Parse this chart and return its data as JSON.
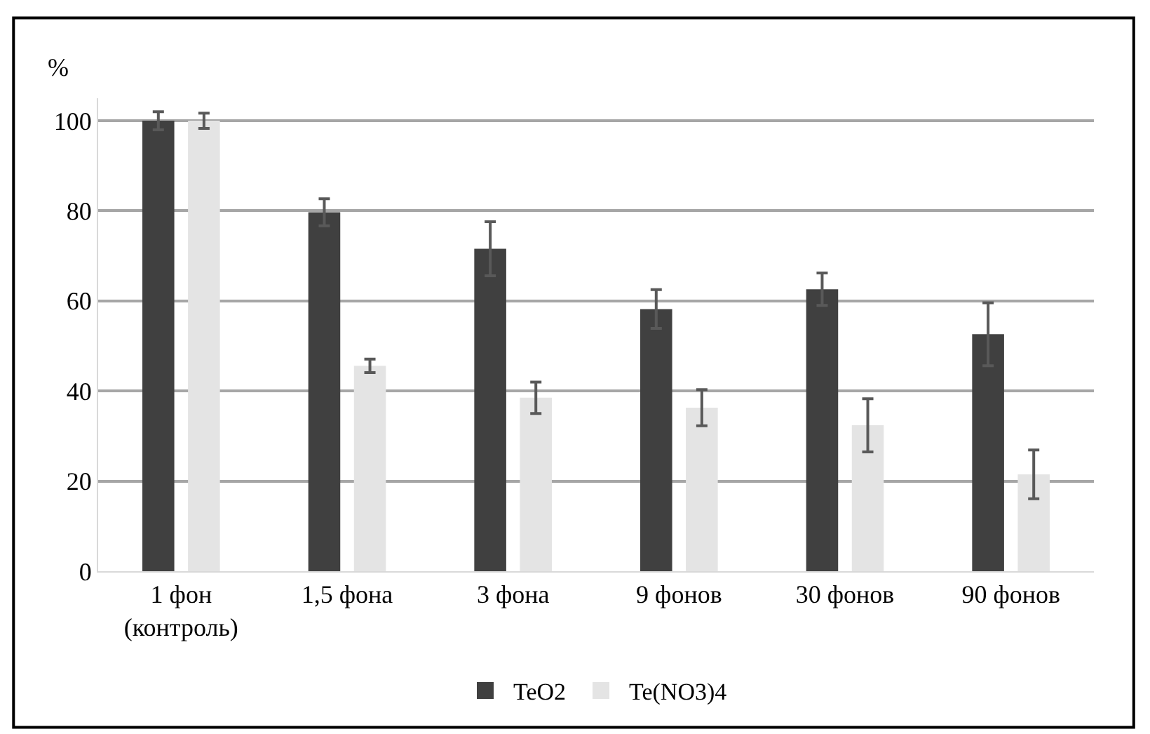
{
  "chart_data": {
    "type": "bar",
    "ylabel": "%",
    "categories": [
      "1 фон\n(контроль)",
      "1,5 фона",
      "3 фона",
      "9 фонов",
      "30 фонов",
      "90 фонов"
    ],
    "series": [
      {
        "name": "TeO2",
        "color": "#404040",
        "values": [
          100,
          79.7,
          71.6,
          58.2,
          62.6,
          52.6
        ],
        "errors": [
          2,
          3,
          6,
          4.3,
          3.6,
          7
        ]
      },
      {
        "name": "Te(NO3)4",
        "color": "#e4e4e4",
        "values": [
          100,
          45.6,
          38.5,
          36.3,
          32.4,
          21.5
        ],
        "errors": [
          1.7,
          1.5,
          3.5,
          4,
          5.9,
          5.4
        ]
      }
    ],
    "ylim": [
      0,
      105
    ],
    "yticks": [
      0,
      20,
      40,
      60,
      80,
      100
    ],
    "grid": "y",
    "legend": "bottom"
  }
}
